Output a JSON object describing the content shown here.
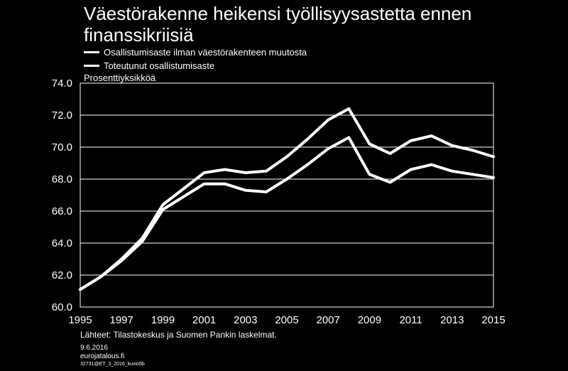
{
  "title": "Väestörakenne heikensi työllisyysastetta ennen finanssikriisiä",
  "unit_label": "Prosenttiyksikköä",
  "source": "Lähteet: Tilastokeskus ja Suomen Pankin laskelmat.",
  "date": "9.6.2016",
  "site": "eurojatalous.fi",
  "code": "32731@ET_3_2016_kuvio5b",
  "colors": {
    "background": "#000000",
    "lines": "#ffffff",
    "grid": "#ffffff"
  },
  "chart_data": {
    "type": "line",
    "title": "Väestörakenne heikensi työllisyysastetta ennen finanssikriisiä",
    "ylabel": "Prosenttiyksikköä",
    "xlabel": "",
    "x": [
      1995,
      1996,
      1997,
      1998,
      1999,
      2000,
      2001,
      2002,
      2003,
      2004,
      2005,
      2006,
      2007,
      2008,
      2009,
      2010,
      2011,
      2012,
      2013,
      2014,
      2015
    ],
    "x_tick_labels": [
      "1995",
      "1997",
      "1999",
      "2001",
      "2003",
      "2005",
      "2007",
      "2009",
      "2011",
      "2013",
      "2015"
    ],
    "y_tick_labels": [
      "60.0",
      "62.0",
      "64.0",
      "66.0",
      "68.0",
      "70.0",
      "72.0",
      "74.0"
    ],
    "ylim": [
      60,
      74
    ],
    "xlim": [
      1995,
      2015
    ],
    "grid": true,
    "legend_position": "top-left",
    "series": [
      {
        "name": "Osallistumisaste ilman väestörakenteen muutosta",
        "values": [
          61.1,
          61.9,
          63.0,
          64.3,
          66.4,
          67.4,
          68.4,
          68.6,
          68.4,
          68.5,
          69.4,
          70.5,
          71.7,
          72.4,
          70.2,
          69.6,
          70.4,
          70.7,
          70.1,
          69.8,
          69.4
        ]
      },
      {
        "name": "Toteutunut osallistumisaste",
        "values": [
          61.1,
          61.9,
          62.9,
          64.1,
          66.1,
          66.9,
          67.7,
          67.7,
          67.3,
          67.2,
          68.0,
          68.9,
          69.9,
          70.6,
          68.3,
          67.8,
          68.6,
          68.9,
          68.5,
          68.3,
          68.1
        ]
      }
    ]
  }
}
